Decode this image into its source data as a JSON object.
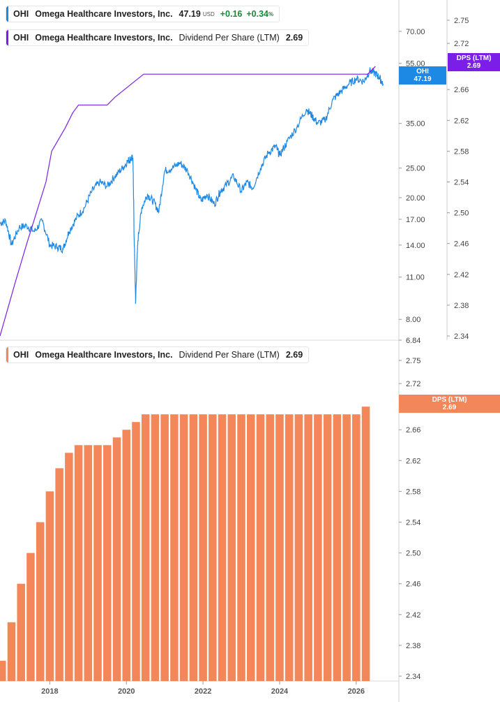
{
  "top_panel": {
    "legend_price": {
      "ticker": "OHI",
      "name": "Omega Healthcare Investors, Inc.",
      "price": "47.19",
      "currency": "USD",
      "change": "+0.16",
      "change_pct": "+0.34",
      "pct_sign": "%",
      "color": "#1e88e5"
    },
    "legend_dps": {
      "ticker": "OHI",
      "name": "Omega Healthcare Investors, Inc.",
      "metric": "Dividend Per Share (LTM)",
      "value": "2.69",
      "color": "#7b1fe8"
    },
    "price_tag": {
      "label": "OHI",
      "value": "47.19",
      "color": "#1e88e5"
    },
    "dps_tag": {
      "label": "DPS (LTM)",
      "value": "2.69",
      "color": "#7b1fe8"
    }
  },
  "bottom_panel": {
    "legend": {
      "ticker": "OHI",
      "name": "Omega Healthcare Investors, Inc.",
      "metric": "Dividend Per Share (LTM)",
      "value": "2.69",
      "color": "#f4875a"
    },
    "dps_tag": {
      "label": "DPS (LTM)",
      "value": "2.69",
      "color": "#f4875a"
    }
  },
  "chart_data": [
    {
      "type": "line",
      "scale": "log",
      "series": [
        {
          "name": "OHI",
          "color": "#1e88e5",
          "x": [
            2016.7,
            2016.85,
            2017.0,
            2017.2,
            2017.4,
            2017.6,
            2017.8,
            2018.0,
            2018.2,
            2018.35,
            2018.5,
            2018.7,
            2018.9,
            2019.1,
            2019.3,
            2019.5,
            2019.7,
            2019.9,
            2020.05,
            2020.12,
            2020.17,
            2020.2,
            2020.24,
            2020.3,
            2020.4,
            2020.55,
            2020.7,
            2020.85,
            2021.0,
            2021.2,
            2021.4,
            2021.6,
            2021.8,
            2021.95,
            2022.1,
            2022.3,
            2022.45,
            2022.6,
            2022.8,
            2023.0,
            2023.15,
            2023.3,
            2023.5,
            2023.7,
            2023.9,
            2024.0,
            2024.2,
            2024.45,
            2024.7,
            2024.85,
            2025.0,
            2025.2,
            2025.4,
            2025.6,
            2025.8,
            2026.0,
            2026.2,
            2026.35,
            2026.5,
            2026.6,
            2026.7
          ],
          "values": [
            16.5,
            16.8,
            14.0,
            16.0,
            16.2,
            15.5,
            16.8,
            14.0,
            13.8,
            13.6,
            15.5,
            17.2,
            18.5,
            21.0,
            22.5,
            21.8,
            23.5,
            25.0,
            26.5,
            26.8,
            27.0,
            15.0,
            9.0,
            14.5,
            18.5,
            20.5,
            19.5,
            18.0,
            24.5,
            25.0,
            26.0,
            24.5,
            21.5,
            19.5,
            20.5,
            19.0,
            21.0,
            22.0,
            23.5,
            21.0,
            22.5,
            21.5,
            25.0,
            28.0,
            29.5,
            27.5,
            30.5,
            34.0,
            39.0,
            37.0,
            35.0,
            36.0,
            42.0,
            44.5,
            47.0,
            49.0,
            48.0,
            52.0,
            51.0,
            49.5,
            47.19
          ]
        },
        {
          "name": "Dividend Per Share (LTM)",
          "color": "#7b1fe8",
          "x": [
            2016.7,
            2017.1,
            2017.4,
            2017.65,
            2017.9,
            2018.05,
            2018.4,
            2018.6,
            2018.75,
            2019.0,
            2019.15,
            2019.5,
            2019.7,
            2019.95,
            2020.2,
            2020.45,
            2020.55,
            2026.3,
            2026.5
          ],
          "values": [
            2.34,
            2.41,
            2.46,
            2.5,
            2.54,
            2.58,
            2.61,
            2.63,
            2.64,
            2.64,
            2.64,
            2.64,
            2.65,
            2.66,
            2.67,
            2.68,
            2.68,
            2.68,
            2.69
          ]
        }
      ],
      "y_ticks": [
        "70.00",
        "55.00",
        "35.00",
        "25.00",
        "20.00",
        "17.00",
        "14.00",
        "11.00",
        "8.00",
        "6.84"
      ],
      "y2_ticks": [
        "2.75",
        "2.72",
        "2.66",
        "2.62",
        "2.58",
        "2.54",
        "2.50",
        "2.46",
        "2.42",
        "2.38",
        "2.34"
      ],
      "ylim": [
        6.84,
        90
      ],
      "y2lim": [
        2.34,
        2.77
      ]
    },
    {
      "type": "bar",
      "series": [
        {
          "name": "Dividend Per Share (LTM)",
          "color": "#f4875a",
          "values": [
            2.36,
            2.41,
            2.46,
            2.5,
            2.54,
            2.58,
            2.61,
            2.63,
            2.64,
            2.64,
            2.64,
            2.64,
            2.65,
            2.66,
            2.67,
            2.68,
            2.68,
            2.68,
            2.68,
            2.68,
            2.68,
            2.68,
            2.68,
            2.68,
            2.68,
            2.68,
            2.68,
            2.68,
            2.68,
            2.68,
            2.68,
            2.68,
            2.68,
            2.68,
            2.68,
            2.68,
            2.68,
            2.68,
            2.69
          ]
        }
      ],
      "x_start": 2016.75,
      "x_step": 0.25,
      "x_ticks": [
        "2018",
        "2020",
        "2022",
        "2024",
        "2026"
      ],
      "y_ticks": [
        "2.75",
        "2.72",
        "2.66",
        "2.62",
        "2.58",
        "2.54",
        "2.50",
        "2.46",
        "2.42",
        "2.38",
        "2.34"
      ],
      "ylim": [
        2.335,
        2.77
      ]
    }
  ]
}
